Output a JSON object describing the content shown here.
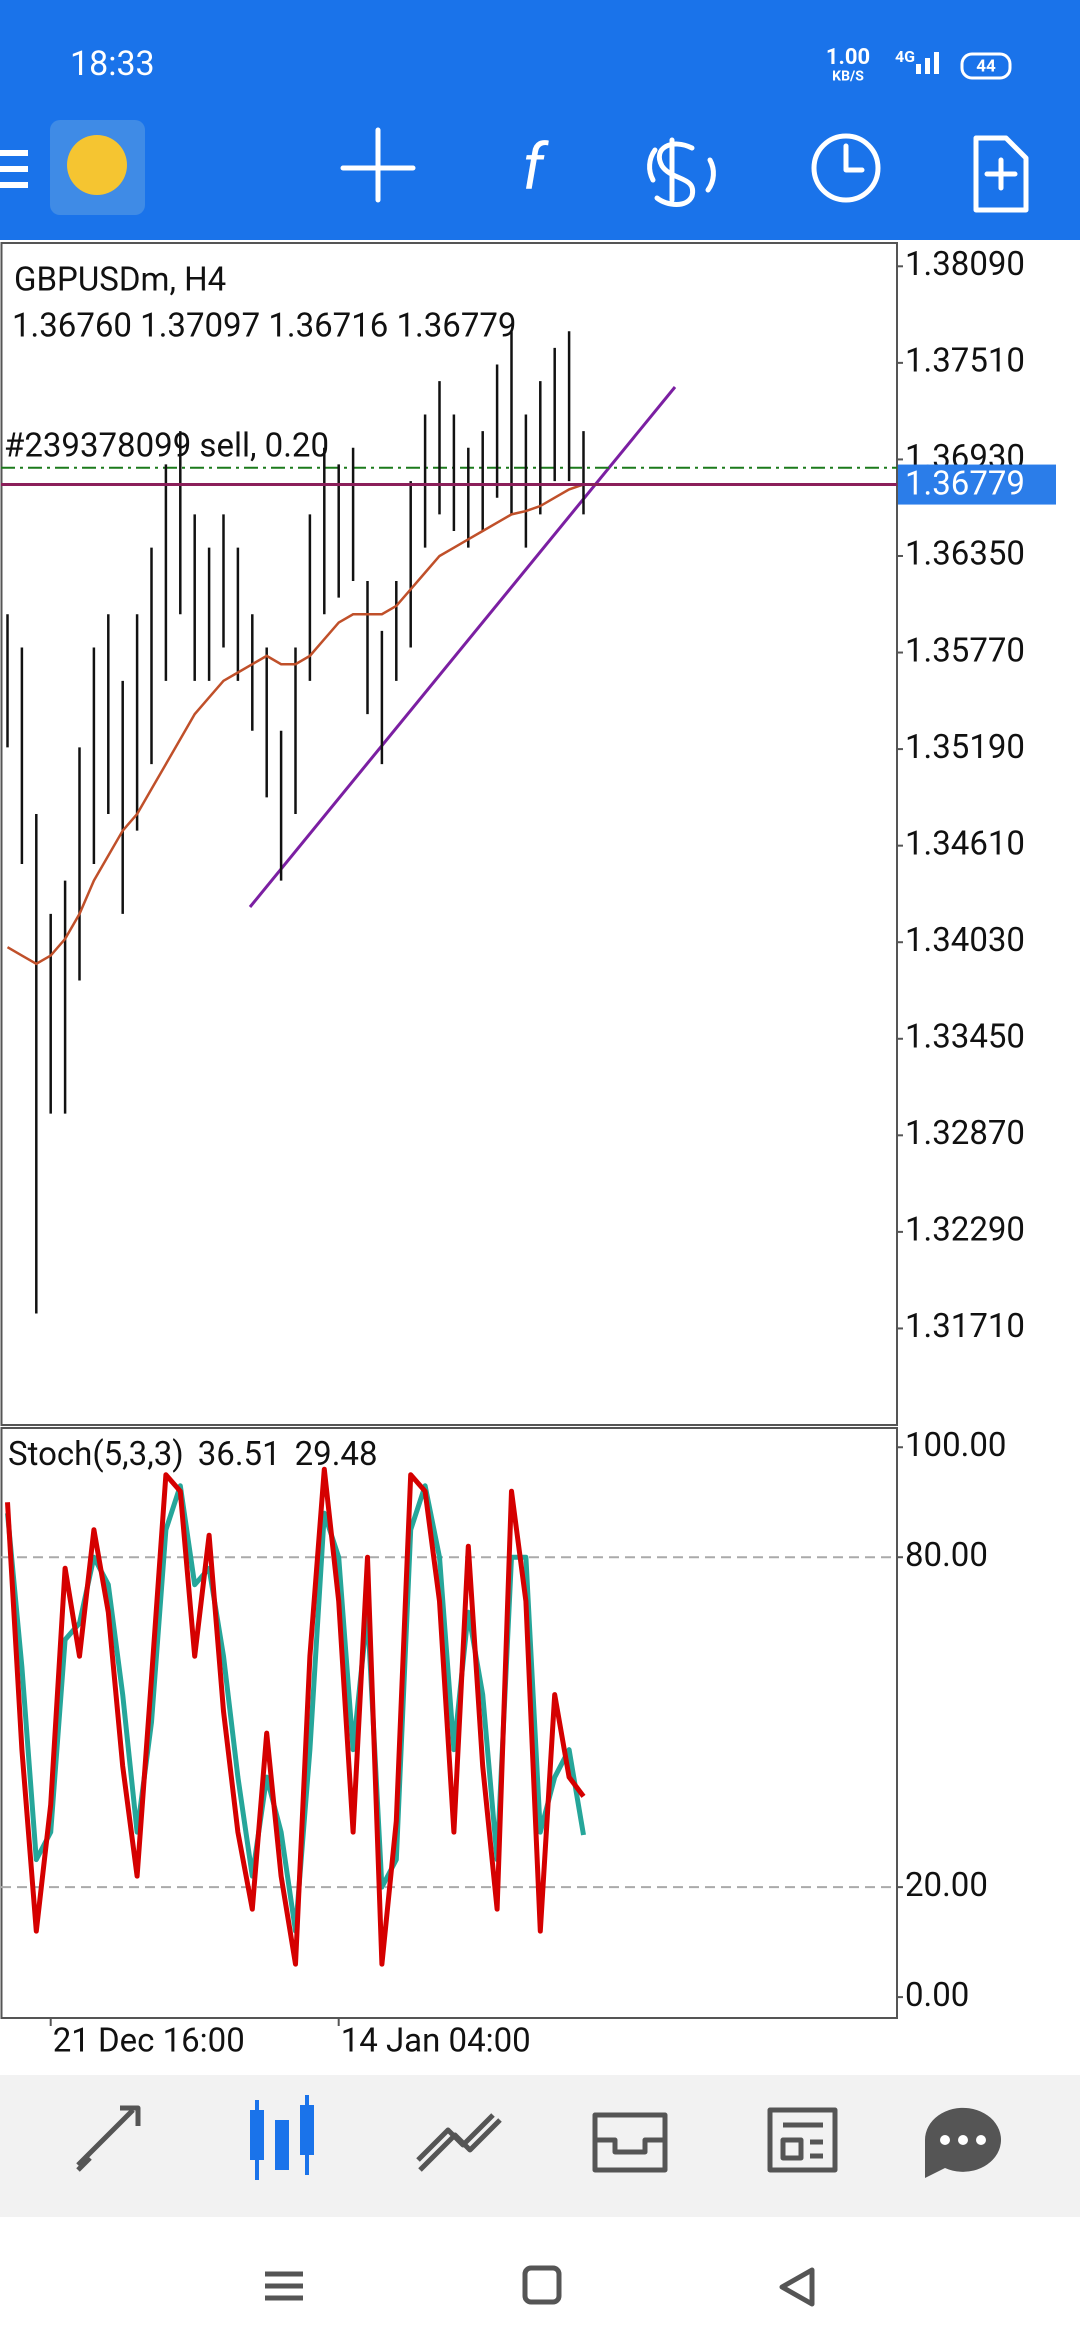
{
  "status_bar": {
    "time": "18:33",
    "speed": "1.00",
    "speed_unit": "KB/S",
    "network": "4G",
    "battery": "44"
  },
  "chart_data": [
    {
      "type": "candlestick",
      "title": "GBPUSDm, H4",
      "ohlc_text": "1.36760 1.37097 1.36716 1.36779",
      "order_label": "#239378099 sell, 0.20",
      "order_price": 1.3688,
      "current_price": {
        "value": 1.36779,
        "label": "1.36779"
      },
      "ylim": [
        1.3113,
        1.3823
      ],
      "yticks": [
        {
          "value": 1.3809,
          "label": "1.38090"
        },
        {
          "value": 1.3751,
          "label": "1.37510"
        },
        {
          "value": 1.3693,
          "label": "1.36930"
        },
        {
          "value": 1.3635,
          "label": "1.36350"
        },
        {
          "value": 1.3577,
          "label": "1.35770"
        },
        {
          "value": 1.3519,
          "label": "1.35190"
        },
        {
          "value": 1.3461,
          "label": "1.34610"
        },
        {
          "value": 1.3403,
          "label": "1.34030"
        },
        {
          "value": 1.3345,
          "label": "1.33450"
        },
        {
          "value": 1.3287,
          "label": "1.32870"
        },
        {
          "value": 1.3229,
          "label": "1.32290"
        },
        {
          "value": 1.3171,
          "label": "1.31710"
        }
      ],
      "categories": [
        null,
        null,
        null,
        "21 Dec 16:00",
        null,
        null,
        null,
        null,
        null,
        null,
        null,
        null,
        null,
        null,
        null,
        null,
        null,
        null,
        null,
        null,
        null,
        null,
        null,
        "14 Jan 04:00",
        null,
        null,
        null,
        null,
        null,
        null,
        null,
        null,
        null,
        null,
        null,
        null,
        null,
        null,
        null,
        null,
        null
      ],
      "high": [
        1.36,
        1.358,
        1.348,
        1.342,
        1.344,
        1.352,
        1.358,
        1.36,
        1.356,
        1.36,
        1.364,
        1.369,
        1.371,
        1.366,
        1.364,
        1.366,
        1.364,
        1.36,
        1.358,
        1.353,
        1.358,
        1.366,
        1.37,
        1.369,
        1.37,
        1.362,
        1.359,
        1.362,
        1.368,
        1.372,
        1.374,
        1.372,
        1.37,
        1.371,
        1.375,
        1.377,
        1.372,
        1.374,
        1.376,
        1.377,
        1.371
      ],
      "low": [
        1.352,
        1.345,
        1.318,
        1.33,
        1.33,
        1.338,
        1.345,
        1.348,
        1.342,
        1.347,
        1.351,
        1.356,
        1.36,
        1.356,
        1.356,
        1.358,
        1.356,
        1.353,
        1.349,
        1.344,
        1.348,
        1.356,
        1.36,
        1.361,
        1.362,
        1.354,
        1.351,
        1.356,
        1.358,
        1.364,
        1.366,
        1.365,
        1.364,
        1.365,
        1.367,
        1.366,
        1.364,
        1.366,
        1.368,
        1.368,
        1.366
      ],
      "series": [
        {
          "color": "#c0502a",
          "values": [
            1.34,
            1.3395,
            1.339,
            1.3395,
            1.3405,
            1.342,
            1.344,
            1.3455,
            1.347,
            1.348,
            1.3495,
            1.351,
            1.3525,
            1.354,
            1.355,
            1.356,
            1.3565,
            1.357,
            1.3575,
            1.357,
            1.357,
            1.3575,
            1.3585,
            1.3595,
            1.36,
            1.36,
            1.36,
            1.3605,
            1.3615,
            1.3625,
            1.3635,
            1.364,
            1.3645,
            1.365,
            1.3655,
            1.366,
            1.3662,
            1.3665,
            1.367,
            1.3675,
            1.3678
          ]
        }
      ]
    },
    {
      "type": "line",
      "title": "Stoch(5,3,3)",
      "ylim": [
        -3.8,
        103.5
      ],
      "yticks": [
        {
          "value": 100,
          "label": "100.00"
        },
        {
          "value": 80,
          "label": "80.00"
        },
        {
          "value": 20,
          "label": "20.00"
        },
        {
          "value": 0,
          "label": "0.00"
        }
      ],
      "levels": [
        80,
        20
      ],
      "series": [
        {
          "color": "#26a69a",
          "values": [
            88,
            60,
            25,
            30,
            65,
            68,
            80,
            75,
            55,
            30,
            50,
            85,
            93,
            75,
            78,
            62,
            40,
            22,
            40,
            30,
            12,
            45,
            88,
            80,
            45,
            70,
            20,
            25,
            85,
            93,
            80,
            45,
            70,
            55,
            25,
            80,
            80,
            30,
            40,
            45,
            29.48
          ]
        },
        {
          "color": "#d50000",
          "values": [
            90,
            45,
            12,
            35,
            78,
            62,
            85,
            70,
            42,
            22,
            58,
            95,
            92,
            62,
            84,
            52,
            30,
            16,
            48,
            22,
            6,
            62,
            96,
            72,
            30,
            80,
            6,
            32,
            95,
            92,
            72,
            30,
            82,
            42,
            16,
            92,
            72,
            12,
            55,
            40,
            36.51
          ]
        }
      ]
    }
  ]
}
